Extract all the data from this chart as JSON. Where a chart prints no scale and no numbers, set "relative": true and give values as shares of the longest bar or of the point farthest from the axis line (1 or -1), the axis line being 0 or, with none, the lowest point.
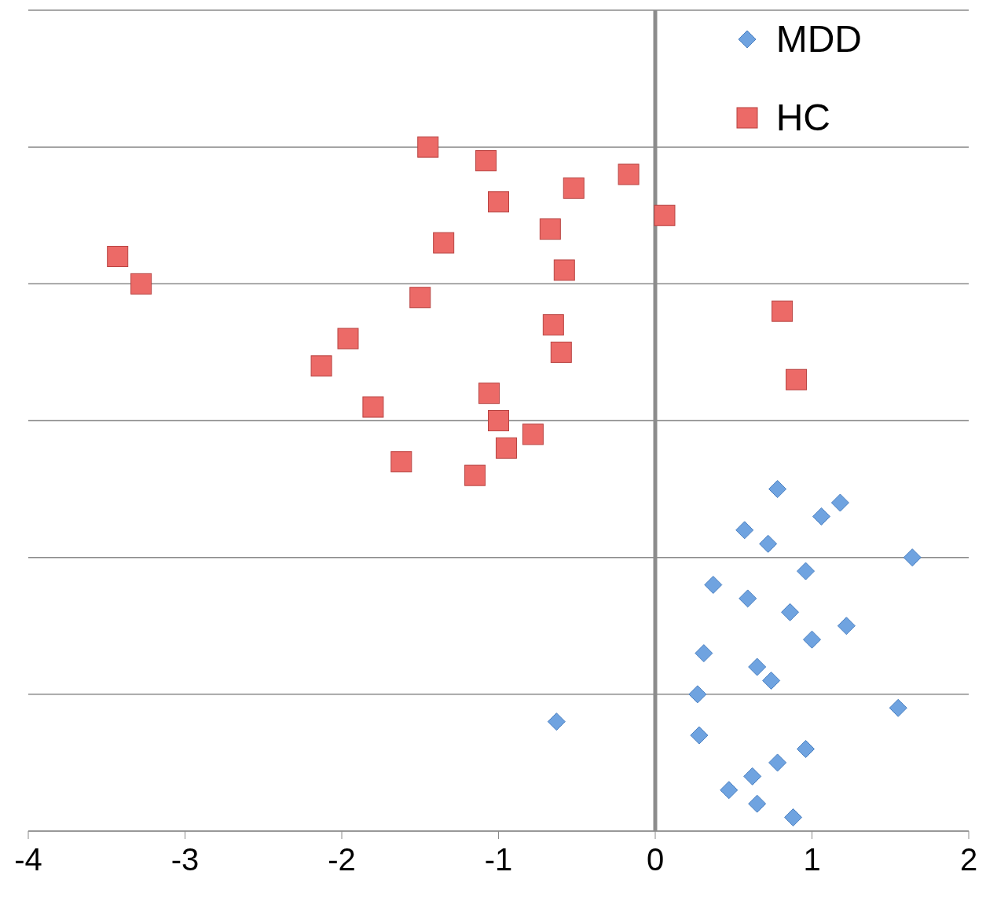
{
  "chart_data": {
    "type": "scatter",
    "ref_lines": [
      {
        "axis": "x",
        "value": 0,
        "color": "#8c8c8c"
      }
    ],
    "relative": true,
    "xlim": [
      -4,
      2
    ],
    "xticks": [
      -4,
      -3,
      -2,
      -1,
      0,
      1,
      2
    ],
    "tick_labels": "x",
    "grid": "y",
    "legend": "top right",
    "series": [
      {
        "name": "MDD",
        "color": "#6fa3e0",
        "marker": "diamond",
        "x": [
          0.78,
          1.18,
          1.06,
          0.57,
          0.72,
          1.64,
          0.96,
          0.37,
          0.59,
          0.86,
          1.22,
          1.0,
          0.31,
          0.65,
          0.74,
          0.27,
          1.55,
          -0.63,
          0.28,
          0.96,
          0.78,
          0.62,
          0.47,
          0.65,
          0.88
        ],
        "values": [
          0.5,
          0.48,
          0.46,
          0.44,
          0.42,
          0.4,
          0.38,
          0.36,
          0.34,
          0.32,
          0.3,
          0.28,
          0.26,
          0.24,
          0.22,
          0.2,
          0.18,
          0.16,
          0.14,
          0.12,
          0.1,
          0.08,
          0.06,
          0.04,
          0.02
        ]
      },
      {
        "name": "HC",
        "color": "#ec6a67",
        "marker": "square",
        "x": [
          -1.45,
          -1.08,
          -0.17,
          -0.52,
          -1.0,
          0.06,
          -0.67,
          -1.35,
          -3.43,
          -0.58,
          -3.28,
          -1.5,
          0.81,
          -0.65,
          -1.96,
          -0.6,
          -2.13,
          0.9,
          -1.06,
          -1.8,
          -1.0,
          -0.78,
          -0.95,
          -1.62,
          -1.15
        ],
        "values": [
          1.0,
          0.98,
          0.96,
          0.94,
          0.92,
          0.9,
          0.88,
          0.86,
          0.84,
          0.82,
          0.8,
          0.78,
          0.76,
          0.74,
          0.72,
          0.7,
          0.68,
          0.66,
          0.64,
          0.62,
          0.6,
          0.58,
          0.56,
          0.54,
          0.52
        ]
      }
    ]
  }
}
